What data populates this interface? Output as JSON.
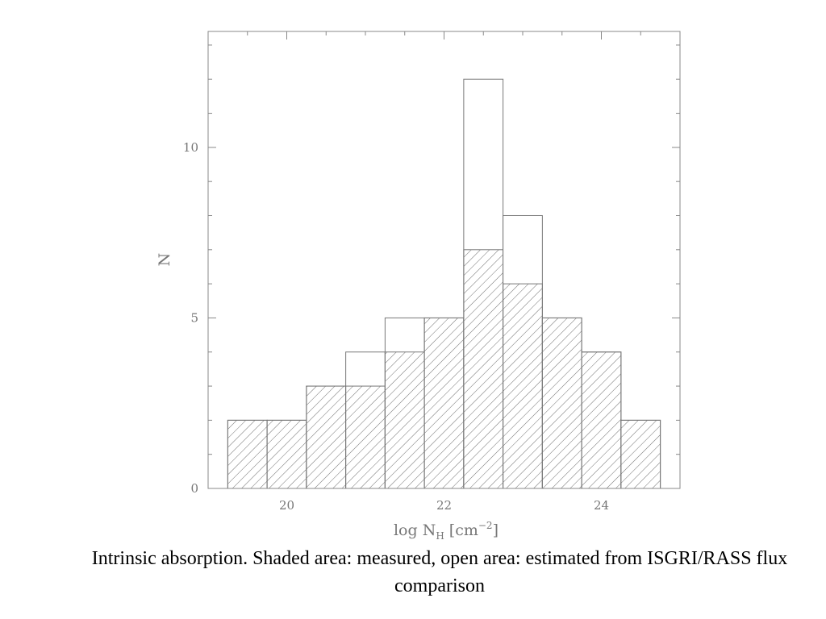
{
  "chart_data": {
    "type": "bar",
    "bins": [
      {
        "x0": 19.25,
        "x1": 19.75,
        "total": 2,
        "measured": 2
      },
      {
        "x0": 19.75,
        "x1": 20.25,
        "total": 2,
        "measured": 2
      },
      {
        "x0": 20.25,
        "x1": 20.75,
        "total": 3,
        "measured": 3
      },
      {
        "x0": 20.75,
        "x1": 21.25,
        "total": 4,
        "measured": 3
      },
      {
        "x0": 21.25,
        "x1": 21.75,
        "total": 5,
        "measured": 4
      },
      {
        "x0": 21.75,
        "x1": 22.25,
        "total": 5,
        "measured": 5
      },
      {
        "x0": 22.25,
        "x1": 22.75,
        "total": 12,
        "measured": 7
      },
      {
        "x0": 22.75,
        "x1": 23.25,
        "total": 8,
        "measured": 6
      },
      {
        "x0": 23.25,
        "x1": 23.75,
        "total": 5,
        "measured": 5
      },
      {
        "x0": 23.75,
        "x1": 24.25,
        "total": 4,
        "measured": 4
      },
      {
        "x0": 24.25,
        "x1": 24.75,
        "total": 2,
        "measured": 2
      }
    ],
    "xlim": [
      19,
      25
    ],
    "ylim": [
      0,
      13.4
    ],
    "xticks": [
      20,
      22,
      24
    ],
    "yticks": [
      0,
      5,
      10
    ],
    "xlabel_main": "log N",
    "xlabel_sub": "H",
    "xlabel_unit": "[cm",
    "xlabel_exp": "−2",
    "xlabel_close": "]",
    "ylabel": "N",
    "fill_style": "hatched",
    "colors": {
      "axis": "#888888",
      "bar": "#777777",
      "hatch": "#6f6f6f",
      "text": "#777777"
    }
  },
  "caption": "Intrinsic absorption. Shaded area: measured, open area: estimated from ISGRI/RASS flux comparison"
}
